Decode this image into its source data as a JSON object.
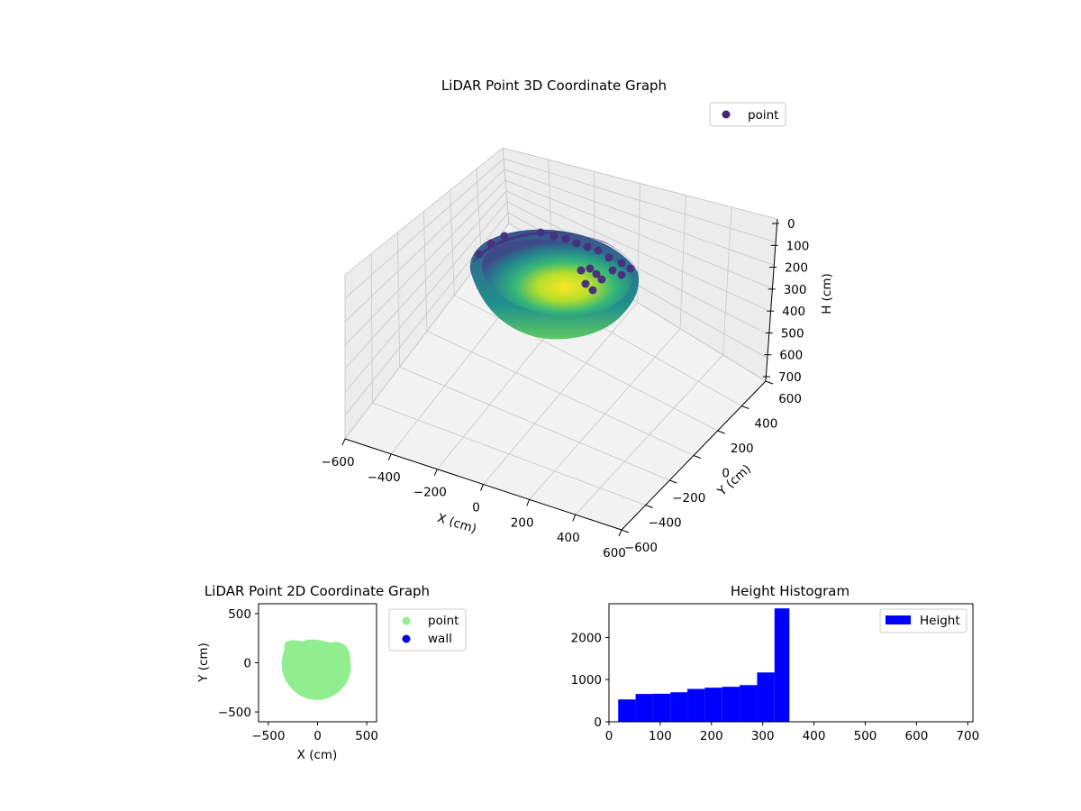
{
  "chart_data": [
    {
      "type": "scatter",
      "projection": "3d",
      "title": "LiDAR Point 3D Coordinate Graph",
      "xlabel": "X (cm)",
      "ylabel": "Y (cm)",
      "zlabel": "H (cm)",
      "xlim": [
        -600,
        600
      ],
      "ylim": [
        -600,
        600
      ],
      "zlim": [
        700,
        0
      ],
      "xticks": [
        "−600",
        "−400",
        "−200",
        "0",
        "200",
        "400",
        "600"
      ],
      "yticks": [
        "−600",
        "−400",
        "−200",
        "0",
        "200",
        "400",
        "600"
      ],
      "zticks": [
        "0",
        "100",
        "200",
        "300",
        "400",
        "500",
        "600",
        "700"
      ],
      "colormap": "viridis",
      "grid": true,
      "legend": "top-right",
      "series": [
        {
          "name": "point",
          "color": "#482475"
        }
      ]
    },
    {
      "type": "scatter",
      "title": "LiDAR Point 2D Coordinate Graph",
      "xlabel": "X (cm)",
      "ylabel": "Y (cm)",
      "xlim": [
        -600,
        600
      ],
      "ylim": [
        -600,
        600
      ],
      "xticks": [
        "−500",
        "0",
        "500"
      ],
      "yticks": [
        "−500",
        "0",
        "500"
      ],
      "legend": "outside-right",
      "series": [
        {
          "name": "point",
          "color": "#90ee90"
        },
        {
          "name": "wall",
          "color": "#0000ff"
        }
      ]
    },
    {
      "type": "bar",
      "subtype": "histogram",
      "title": "Height Histogram",
      "xlim": [
        0,
        710
      ],
      "ylim": [
        0,
        2800
      ],
      "xticks": [
        "0",
        "100",
        "200",
        "300",
        "400",
        "500",
        "600",
        "700"
      ],
      "yticks": [
        "0",
        "1000",
        "2000"
      ],
      "legend": "top-right",
      "series": [
        {
          "name": "Height",
          "color": "#0000ff"
        }
      ],
      "bins": [
        {
          "x0": 18,
          "x1": 52,
          "count": 530
        },
        {
          "x0": 52,
          "x1": 86,
          "count": 660
        },
        {
          "x0": 86,
          "x1": 120,
          "count": 665
        },
        {
          "x0": 120,
          "x1": 153,
          "count": 700
        },
        {
          "x0": 153,
          "x1": 187,
          "count": 780
        },
        {
          "x0": 187,
          "x1": 221,
          "count": 810
        },
        {
          "x0": 221,
          "x1": 255,
          "count": 830
        },
        {
          "x0": 255,
          "x1": 289,
          "count": 870
        },
        {
          "x0": 289,
          "x1": 323,
          "count": 1170
        },
        {
          "x0": 323,
          "x1": 352,
          "count": 2690
        }
      ]
    }
  ]
}
